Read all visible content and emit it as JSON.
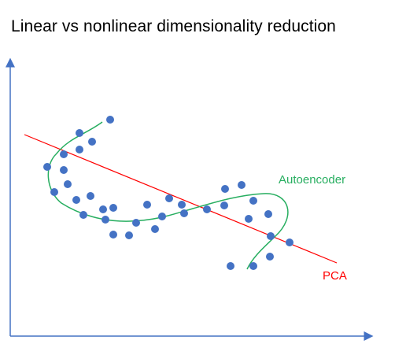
{
  "title": "Linear vs nonlinear dimensionality reduction",
  "labels": {
    "autoencoder": "Autoencoder",
    "pca": "PCA"
  },
  "colors": {
    "axis": "#4472c4",
    "point": "#4472c4",
    "pca_line": "#ff0000",
    "autoencoder_curve": "#27ae60",
    "autoencoder_label": "#27ae60",
    "pca_label": "#ff0000"
  }
}
